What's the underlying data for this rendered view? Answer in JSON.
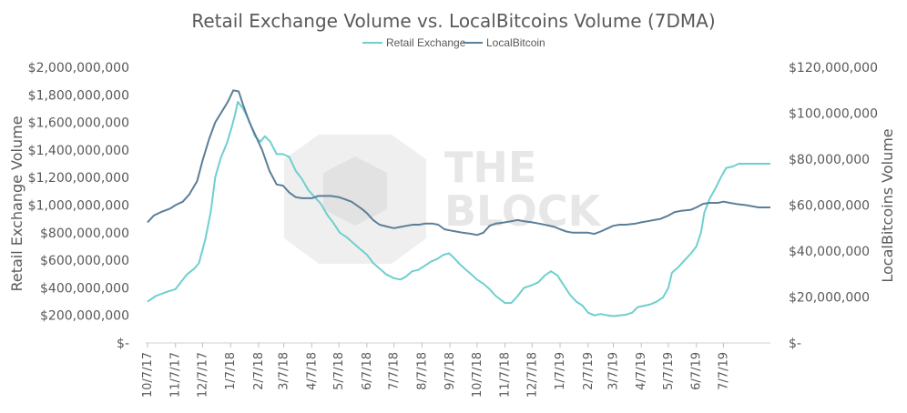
{
  "chart_data": {
    "type": "line",
    "title": "Retail Exchange Volume vs. LocalBitcoins Volume (7DMA)",
    "ylabel": "Retail Exchange Volume",
    "y2label": "LocalBitcoins Volume",
    "ylim": [
      0,
      2000000000
    ],
    "y2lim": [
      0,
      120000000
    ],
    "yticks": [
      "$-",
      "$200,000,000",
      "$400,000,000",
      "$600,000,000",
      "$800,000,000",
      "$1,000,000,000",
      "$1,200,000,000",
      "$1,400,000,000",
      "$1,600,000,000",
      "$1,800,000,000",
      "$2,000,000,000"
    ],
    "y2ticks": [
      "$-",
      "$20,000,000",
      "$40,000,000",
      "$60,000,000",
      "$80,000,000",
      "$100,000,000",
      "$120,000,000"
    ],
    "xticks": [
      "10/7/17",
      "11/7/17",
      "12/7/17",
      "1/7/18",
      "2/7/18",
      "3/7/18",
      "4/7/18",
      "5/7/18",
      "6/7/18",
      "7/7/18",
      "8/7/18",
      "9/7/18",
      "10/7/18",
      "11/7/18",
      "12/7/18",
      "1/7/19",
      "2/7/19",
      "3/7/19",
      "4/7/19",
      "5/7/19",
      "6/7/19",
      "7/7/19"
    ],
    "x_end": "8/28/19",
    "legend": "top",
    "grid": false,
    "watermark": "THE BLOCK",
    "series": [
      {
        "name": "Retail Exchange",
        "axis": "left",
        "color": "#6fcfcf",
        "points": [
          [
            "10/7/17",
            300000000
          ],
          [
            "10/16/17",
            340000000
          ],
          [
            "10/28/17",
            370000000
          ],
          [
            "11/7/17",
            390000000
          ],
          [
            "11/14/17",
            450000000
          ],
          [
            "11/20/17",
            500000000
          ],
          [
            "11/28/17",
            540000000
          ],
          [
            "12/3/17",
            580000000
          ],
          [
            "12/10/17",
            750000000
          ],
          [
            "12/16/17",
            950000000
          ],
          [
            "12/21/17",
            1200000000
          ],
          [
            "12/27/17",
            1340000000
          ],
          [
            "1/3/18",
            1450000000
          ],
          [
            "1/8/18",
            1560000000
          ],
          [
            "1/12/18",
            1660000000
          ],
          [
            "1/15/18",
            1750000000
          ],
          [
            "1/21/18",
            1700000000
          ],
          [
            "1/27/18",
            1620000000
          ],
          [
            "2/3/18",
            1500000000
          ],
          [
            "2/9/18",
            1460000000
          ],
          [
            "2/14/18",
            1500000000
          ],
          [
            "2/20/18",
            1460000000
          ],
          [
            "2/27/18",
            1370000000
          ],
          [
            "3/6/18",
            1370000000
          ],
          [
            "3/13/18",
            1350000000
          ],
          [
            "3/20/18",
            1250000000
          ],
          [
            "3/27/18",
            1190000000
          ],
          [
            "4/3/18",
            1110000000
          ],
          [
            "4/10/18",
            1060000000
          ],
          [
            "4/17/18",
            1010000000
          ],
          [
            "4/24/18",
            930000000
          ],
          [
            "5/1/18",
            870000000
          ],
          [
            "5/8/18",
            800000000
          ],
          [
            "5/15/18",
            770000000
          ],
          [
            "5/22/18",
            730000000
          ],
          [
            "5/29/18",
            690000000
          ],
          [
            "6/7/18",
            640000000
          ],
          [
            "6/14/18",
            580000000
          ],
          [
            "6/21/18",
            540000000
          ],
          [
            "6/28/18",
            500000000
          ],
          [
            "7/7/18",
            470000000
          ],
          [
            "7/14/18",
            460000000
          ],
          [
            "7/20/18",
            480000000
          ],
          [
            "7/27/18",
            520000000
          ],
          [
            "8/3/18",
            530000000
          ],
          [
            "8/10/18",
            560000000
          ],
          [
            "8/17/18",
            590000000
          ],
          [
            "8/24/18",
            610000000
          ],
          [
            "8/31/18",
            640000000
          ],
          [
            "9/6/18",
            650000000
          ],
          [
            "9/11/18",
            620000000
          ],
          [
            "9/18/18",
            570000000
          ],
          [
            "9/25/18",
            530000000
          ],
          [
            "10/2/18",
            490000000
          ],
          [
            "10/7/18",
            460000000
          ],
          [
            "10/14/18",
            430000000
          ],
          [
            "10/21/18",
            390000000
          ],
          [
            "10/28/18",
            340000000
          ],
          [
            "11/7/18",
            290000000
          ],
          [
            "11/14/18",
            290000000
          ],
          [
            "11/21/18",
            340000000
          ],
          [
            "11/28/18",
            400000000
          ],
          [
            "12/7/18",
            420000000
          ],
          [
            "12/14/18",
            440000000
          ],
          [
            "12/21/18",
            490000000
          ],
          [
            "12/28/18",
            520000000
          ],
          [
            "1/4/19",
            490000000
          ],
          [
            "1/11/19",
            420000000
          ],
          [
            "1/18/19",
            350000000
          ],
          [
            "1/25/19",
            300000000
          ],
          [
            "2/1/19",
            270000000
          ],
          [
            "2/7/19",
            220000000
          ],
          [
            "2/14/19",
            200000000
          ],
          [
            "2/21/19",
            210000000
          ],
          [
            "3/1/19",
            200000000
          ],
          [
            "3/7/19",
            195000000
          ],
          [
            "3/14/19",
            200000000
          ],
          [
            "3/21/19",
            205000000
          ],
          [
            "3/28/19",
            220000000
          ],
          [
            "4/3/19",
            260000000
          ],
          [
            "4/10/19",
            270000000
          ],
          [
            "4/17/19",
            280000000
          ],
          [
            "4/24/19",
            300000000
          ],
          [
            "5/1/19",
            330000000
          ],
          [
            "5/7/19",
            400000000
          ],
          [
            "5/11/19",
            510000000
          ],
          [
            "5/18/19",
            550000000
          ],
          [
            "5/25/19",
            600000000
          ],
          [
            "6/1/19",
            650000000
          ],
          [
            "6/7/19",
            700000000
          ],
          [
            "6/12/19",
            800000000
          ],
          [
            "6/16/19",
            950000000
          ],
          [
            "6/22/19",
            1050000000
          ],
          [
            "6/28/19",
            1120000000
          ],
          [
            "7/4/19",
            1200000000
          ],
          [
            "7/10/19",
            1270000000
          ],
          [
            "7/17/19",
            1280000000
          ],
          [
            "7/24/19",
            1300000000
          ],
          [
            "8/1/19",
            1300000000
          ],
          [
            "8/28/19",
            1300000000
          ]
        ]
      },
      {
        "name": "LocalBitcoin",
        "axis": "right",
        "color": "#5b7f99",
        "points": [
          [
            "10/7/17",
            52500000
          ],
          [
            "10/14/17",
            55500000
          ],
          [
            "10/22/17",
            57000000
          ],
          [
            "11/1/17",
            58500000
          ],
          [
            "11/7/17",
            60000000
          ],
          [
            "11/15/17",
            61500000
          ],
          [
            "11/22/17",
            64500000
          ],
          [
            "12/1/17",
            70500000
          ],
          [
            "12/7/17",
            79500000
          ],
          [
            "12/14/17",
            88500000
          ],
          [
            "12/21/17",
            96000000
          ],
          [
            "12/28/17",
            100500000
          ],
          [
            "1/4/18",
            105000000
          ],
          [
            "1/10/18",
            110000000
          ],
          [
            "1/16/18",
            109500000
          ],
          [
            "1/21/18",
            103500000
          ],
          [
            "1/28/18",
            96000000
          ],
          [
            "2/4/18",
            90000000
          ],
          [
            "2/11/18",
            84000000
          ],
          [
            "2/19/18",
            75000000
          ],
          [
            "2/27/18",
            69000000
          ],
          [
            "3/6/18",
            68500000
          ],
          [
            "3/13/18",
            65500000
          ],
          [
            "3/20/18",
            63500000
          ],
          [
            "3/27/18",
            63000000
          ],
          [
            "4/7/18",
            63000000
          ],
          [
            "4/14/18",
            64000000
          ],
          [
            "4/21/18",
            64000000
          ],
          [
            "4/28/18",
            64000000
          ],
          [
            "5/7/18",
            63500000
          ],
          [
            "5/14/18",
            62500000
          ],
          [
            "5/21/18",
            61500000
          ],
          [
            "6/1/18",
            58500000
          ],
          [
            "6/7/18",
            56500000
          ],
          [
            "6/14/18",
            53500000
          ],
          [
            "6/21/18",
            51500000
          ],
          [
            "7/1/18",
            50500000
          ],
          [
            "7/7/18",
            50000000
          ],
          [
            "7/14/18",
            50500000
          ],
          [
            "7/21/18",
            51000000
          ],
          [
            "7/28/18",
            51500000
          ],
          [
            "8/4/18",
            51500000
          ],
          [
            "8/11/18",
            52000000
          ],
          [
            "8/18/18",
            52000000
          ],
          [
            "8/25/18",
            51500000
          ],
          [
            "9/1/18",
            49500000
          ],
          [
            "9/7/18",
            49000000
          ],
          [
            "9/14/18",
            48500000
          ],
          [
            "9/21/18",
            48000000
          ],
          [
            "10/1/18",
            47500000
          ],
          [
            "10/7/18",
            47000000
          ],
          [
            "10/14/18",
            48000000
          ],
          [
            "10/21/18",
            51000000
          ],
          [
            "10/28/18",
            52000000
          ],
          [
            "11/7/18",
            52500000
          ],
          [
            "11/14/18",
            53000000
          ],
          [
            "11/21/18",
            53500000
          ],
          [
            "11/28/18",
            53000000
          ],
          [
            "12/7/18",
            52500000
          ],
          [
            "12/14/18",
            52000000
          ],
          [
            "12/21/18",
            51500000
          ],
          [
            "1/1/19",
            50500000
          ],
          [
            "1/7/19",
            49500000
          ],
          [
            "1/14/19",
            48500000
          ],
          [
            "1/21/19",
            48000000
          ],
          [
            "2/1/19",
            48000000
          ],
          [
            "2/7/19",
            48000000
          ],
          [
            "2/14/19",
            47500000
          ],
          [
            "2/21/19",
            48500000
          ],
          [
            "3/1/19",
            50000000
          ],
          [
            "3/7/19",
            51000000
          ],
          [
            "3/14/19",
            51500000
          ],
          [
            "3/21/19",
            51500000
          ],
          [
            "4/1/19",
            52000000
          ],
          [
            "4/7/19",
            52500000
          ],
          [
            "4/14/19",
            53000000
          ],
          [
            "4/21/19",
            53500000
          ],
          [
            "4/28/19",
            54000000
          ],
          [
            "5/7/19",
            55500000
          ],
          [
            "5/14/19",
            57000000
          ],
          [
            "5/21/19",
            57500000
          ],
          [
            "6/1/19",
            58000000
          ],
          [
            "6/7/19",
            59000000
          ],
          [
            "6/14/19",
            60500000
          ],
          [
            "6/21/19",
            61000000
          ],
          [
            "7/1/19",
            61000000
          ],
          [
            "7/7/19",
            61500000
          ],
          [
            "7/14/19",
            61000000
          ],
          [
            "7/21/19",
            60500000
          ],
          [
            "8/1/19",
            60000000
          ],
          [
            "8/15/19",
            59000000
          ],
          [
            "8/28/19",
            59000000
          ]
        ]
      }
    ]
  }
}
